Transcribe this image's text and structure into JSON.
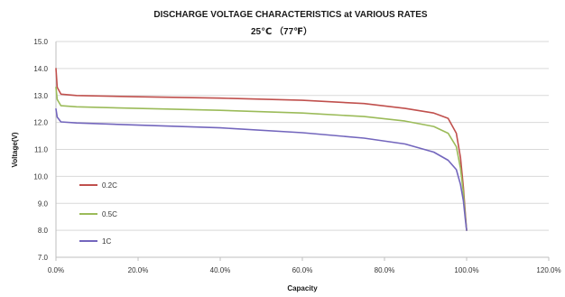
{
  "chart_data": {
    "type": "line",
    "title": "DISCHARGE VOLTAGE CHARACTERISTICS at VARIOUS RATES",
    "subtitle": "25℃ （77℉）",
    "xlabel": "Capacity",
    "ylabel": "Voltage(V)",
    "xlim": [
      0,
      120
    ],
    "ylim": [
      7.0,
      15.0
    ],
    "x_ticks": [
      "0.0%",
      "20.0%",
      "40.0%",
      "60.0%",
      "80.0%",
      "100.0%",
      "120.0%"
    ],
    "y_ticks": [
      "7.0",
      "8.0",
      "9.0",
      "10.0",
      "11.0",
      "12.0",
      "13.0",
      "14.0",
      "15.0"
    ],
    "grid": true,
    "legend_position": "left-bottom",
    "series": [
      {
        "name": "0.2C",
        "color": "#c0504d",
        "x": [
          0,
          0.3,
          1.2,
          5,
          20,
          40,
          60,
          75,
          85,
          92,
          95.5,
          97.5,
          98.5,
          99.2,
          99.7,
          100
        ],
        "y": [
          14.0,
          13.3,
          13.05,
          13.0,
          12.95,
          12.9,
          12.82,
          12.7,
          12.52,
          12.35,
          12.15,
          11.6,
          10.7,
          9.6,
          8.6,
          8.0
        ]
      },
      {
        "name": "0.5C",
        "color": "#9bbb59",
        "x": [
          0,
          0.3,
          1.2,
          5,
          20,
          40,
          60,
          75,
          85,
          92,
          95.5,
          97.5,
          98.5,
          99.2,
          99.7,
          100
        ],
        "y": [
          13.3,
          12.85,
          12.62,
          12.58,
          12.52,
          12.45,
          12.35,
          12.22,
          12.05,
          11.85,
          11.6,
          11.1,
          10.3,
          9.4,
          8.5,
          8.0
        ]
      },
      {
        "name": "1C",
        "color": "#7366bd",
        "x": [
          0,
          0.3,
          1.2,
          5,
          20,
          40,
          60,
          75,
          85,
          92,
          95.5,
          97.5,
          98.5,
          99.2,
          99.7,
          100
        ],
        "y": [
          12.5,
          12.2,
          12.02,
          11.98,
          11.9,
          11.8,
          11.62,
          11.42,
          11.2,
          10.9,
          10.6,
          10.25,
          9.7,
          9.1,
          8.4,
          8.0
        ]
      }
    ]
  }
}
